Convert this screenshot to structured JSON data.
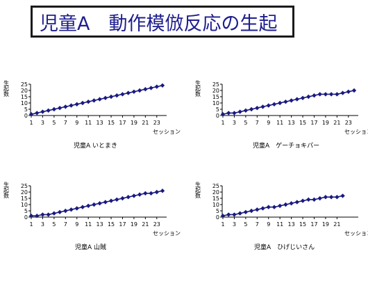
{
  "title": "児童A　動作模倣反応の生起",
  "chart_data": [
    {
      "type": "line",
      "caption": "児童A いとまき",
      "ylabel": "生起数",
      "xlabel": "セッション",
      "ylim": [
        0,
        25
      ],
      "yticks": [
        0,
        5,
        10,
        15,
        20,
        25
      ],
      "xticks": [
        1,
        3,
        5,
        7,
        9,
        11,
        13,
        15,
        17,
        19,
        21,
        23
      ],
      "color": "#1a1a80",
      "x": [
        1,
        2,
        3,
        4,
        5,
        6,
        7,
        8,
        9,
        10,
        11,
        12,
        13,
        14,
        15,
        16,
        17,
        18,
        19,
        20,
        21,
        22,
        23,
        24
      ],
      "values": [
        1,
        2,
        3,
        4,
        5,
        6,
        7,
        8,
        9,
        10,
        11,
        12,
        13,
        14,
        15,
        16,
        17,
        18,
        19,
        20,
        21,
        22,
        23,
        24
      ]
    },
    {
      "type": "line",
      "caption": "児童A　ゲーチョキパー",
      "ylabel": "生起数",
      "xlabel": "セッション",
      "ylim": [
        0,
        25
      ],
      "yticks": [
        0,
        5,
        10,
        15,
        20,
        25
      ],
      "xticks": [
        1,
        3,
        5,
        7,
        9,
        11,
        13,
        15,
        17,
        19,
        21,
        23
      ],
      "color": "#1a1a80",
      "x": [
        1,
        2,
        3,
        4,
        5,
        6,
        7,
        8,
        9,
        10,
        11,
        12,
        13,
        14,
        15,
        16,
        17,
        18,
        19,
        20,
        21,
        22,
        23,
        24
      ],
      "values": [
        1,
        2,
        2,
        3,
        4,
        5,
        6,
        7,
        8,
        9,
        10,
        11,
        12,
        13,
        14,
        15,
        16,
        17,
        17,
        17,
        17,
        18,
        19,
        20
      ]
    },
    {
      "type": "line",
      "caption": "児童A 山賊",
      "ylabel": "生起数",
      "xlabel": "セッション",
      "ylim": [
        0,
        25
      ],
      "yticks": [
        0,
        5,
        10,
        15,
        20,
        25
      ],
      "xticks": [
        1,
        3,
        5,
        7,
        9,
        11,
        13,
        15,
        17,
        19,
        21,
        23
      ],
      "color": "#1a1a80",
      "x": [
        1,
        2,
        3,
        4,
        5,
        6,
        7,
        8,
        9,
        10,
        11,
        12,
        13,
        14,
        15,
        16,
        17,
        18,
        19,
        20,
        21,
        22,
        23,
        24
      ],
      "values": [
        1,
        1,
        2,
        2,
        3,
        4,
        5,
        6,
        7,
        8,
        9,
        10,
        11,
        12,
        13,
        14,
        15,
        16,
        17,
        18,
        19,
        19,
        20,
        21
      ]
    },
    {
      "type": "line",
      "caption": "児童A　ひげじいさん",
      "ylabel": "生起数",
      "xlabel": "セッション",
      "ylim": [
        0,
        25
      ],
      "yticks": [
        0,
        5,
        10,
        15,
        20,
        25
      ],
      "xticks": [
        1,
        3,
        5,
        7,
        9,
        11,
        13,
        15,
        17,
        19,
        21
      ],
      "color": "#1a1a80",
      "x": [
        1,
        2,
        3,
        4,
        5,
        6,
        7,
        8,
        9,
        10,
        11,
        12,
        13,
        14,
        15,
        16,
        17,
        18,
        19,
        20,
        21,
        22
      ],
      "values": [
        1,
        2,
        2,
        3,
        4,
        5,
        6,
        7,
        8,
        8,
        9,
        10,
        11,
        12,
        13,
        14,
        14,
        15,
        16,
        16,
        16,
        17
      ]
    }
  ]
}
